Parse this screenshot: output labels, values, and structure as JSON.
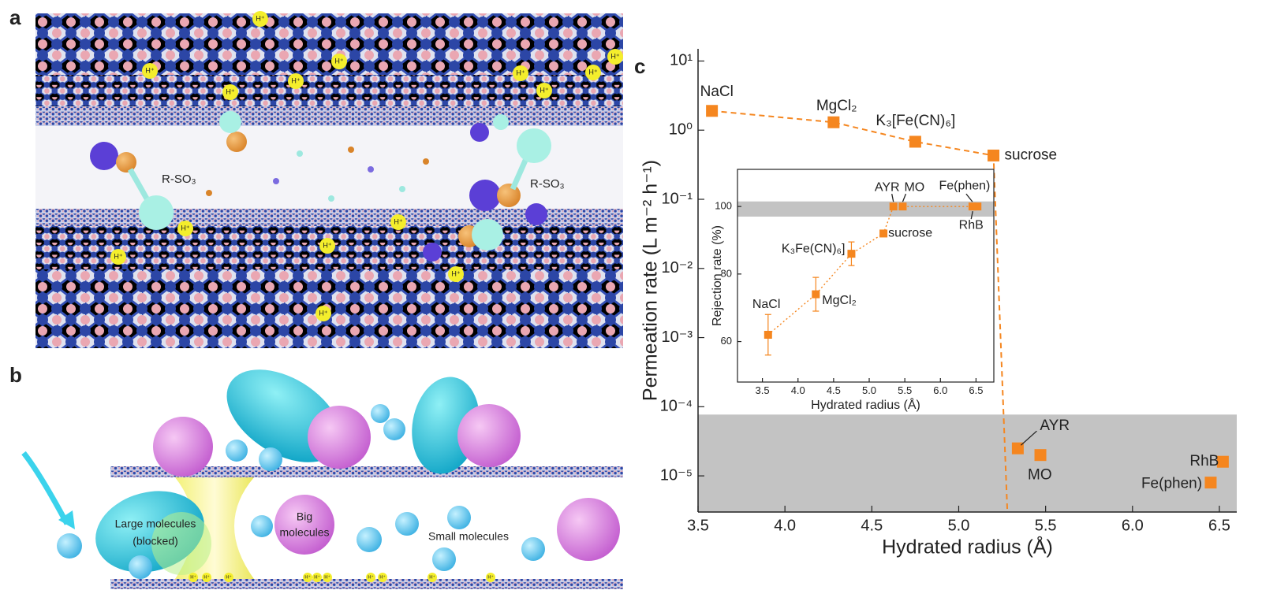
{
  "panels": {
    "a": {
      "label": "a",
      "annotations": [
        "R-SO₃",
        "R-SO₃"
      ],
      "proton_label": "H⁺"
    },
    "b": {
      "label": "b",
      "texts": [
        "Large molecules",
        "(blocked)",
        "Big",
        "molecules",
        "Small molecules"
      ],
      "proton_label": "H⁺"
    },
    "c": {
      "label": "c"
    }
  },
  "chart_data": [
    {
      "type": "scatter",
      "log_y": true,
      "x_label": "Hydrated radius (Å)",
      "y_label": "Permeation rate (L m⁻² h⁻¹)",
      "x": [
        3.58,
        4.28,
        4.75,
        5.2,
        5.34,
        5.47,
        6.52,
        6.45
      ],
      "values": [
        1.9,
        1.3,
        0.68,
        0.43,
        2.5e-05,
        2e-05,
        1.6e-05,
        8e-06
      ],
      "point_labels": [
        "NaCl",
        "MgCl₂",
        "K₃[Fe(CN)₆]",
        "sucrose",
        "AYR",
        "MO",
        "RhB",
        "Fe(phen)"
      ],
      "color": "#f5861f",
      "trend_line": {
        "x": [
          3.58,
          4.28,
          4.75,
          5.2,
          5.28
        ],
        "values": [
          1.9,
          1.3,
          0.68,
          0.43,
          3e-06
        ]
      },
      "shaded_band": [
        3e-06,
        7.7e-05
      ],
      "band_color": "#c3c3c3",
      "xlim": [
        3.5,
        6.6
      ],
      "ylim": [
        3e-06,
        15
      ],
      "xticks": [
        3.5,
        {
          "value": 4,
          "label": "4.0"
        },
        4.5,
        {
          "value": 5,
          "label": "5.0"
        },
        5.5,
        {
          "value": 6,
          "label": "6.0"
        },
        6.5
      ],
      "yticks": [
        {
          "value": 10,
          "label": "10¹"
        },
        {
          "value": 1,
          "label": "10⁰"
        },
        {
          "value": 0.1,
          "label": "10⁻¹"
        },
        {
          "value": 0.01,
          "label": "10⁻²"
        },
        {
          "value": 0.001,
          "label": "10⁻³"
        },
        {
          "value": 0.0001,
          "label": "10⁻⁴"
        },
        {
          "value": 1e-05,
          "label": "10⁻⁵"
        }
      ]
    },
    {
      "type": "scatter",
      "x_label": "Hydrated radius (Å)",
      "y_label": "Rejection rate (%)",
      "x": [
        3.58,
        4.25,
        4.75,
        5.2,
        5.34,
        5.47,
        6.45,
        6.52
      ],
      "values": [
        62,
        74,
        86,
        92,
        100,
        100,
        100,
        100
      ],
      "errors": [
        6,
        5,
        3.5,
        null,
        null,
        null,
        null,
        null
      ],
      "point_labels": [
        "NaCl",
        "MgCl₂",
        "K₃Fe(CN)₆]",
        "sucrose",
        "AYR",
        "MO",
        "Fe(phen)",
        "RhB"
      ],
      "color": "#f5861f",
      "shaded_band": [
        97,
        101.5
      ],
      "band_color": "#c3c3c3",
      "xlim": [
        3.15,
        6.75
      ],
      "ylim": [
        48,
        111
      ],
      "xticks": [
        3.5,
        {
          "value": 4,
          "label": "4.0"
        },
        4.5,
        {
          "value": 5,
          "label": "5.0"
        },
        5.5,
        {
          "value": 6,
          "label": "6.0"
        },
        6.5
      ],
      "yticks": [
        60,
        80,
        100
      ]
    }
  ]
}
